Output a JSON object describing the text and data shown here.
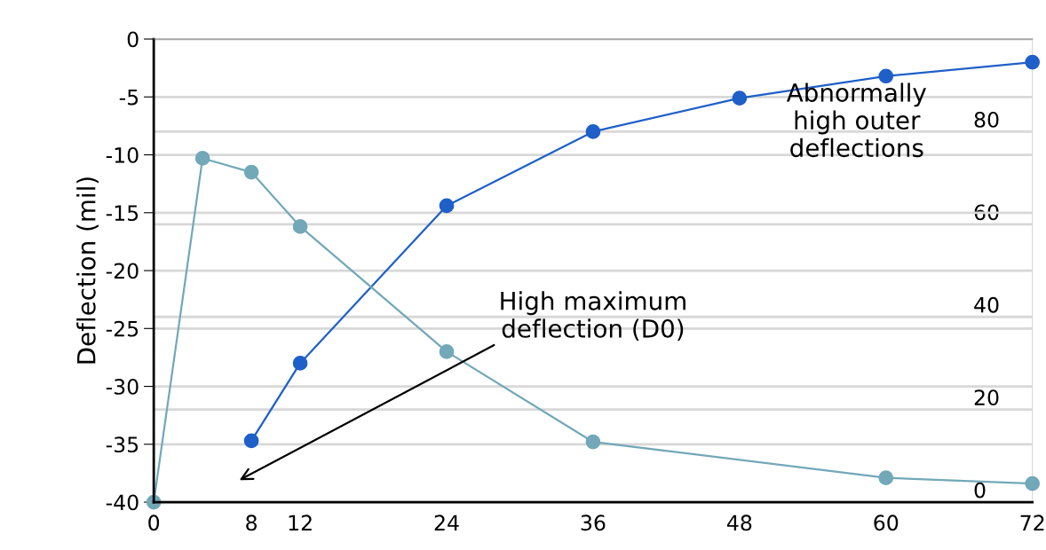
{
  "chart_data": {
    "type": "line",
    "ylabel": "Deflection (mil)",
    "x": [
      8,
      12,
      24,
      36,
      48,
      60,
      72
    ],
    "series": [
      {
        "color": "#1f5fc8",
        "values": [
          -34.7,
          -28.0,
          -14.4,
          -8.0,
          -5.1,
          -3.2,
          -2.0
        ]
      },
      {
        "color": "#72a8b8",
        "x": [
          0,
          4,
          8,
          12,
          24,
          36,
          60,
          72
        ],
        "values": [
          -40,
          -10.3,
          -11.5,
          -16.2,
          -27.0,
          -34.8,
          -37.9,
          -38.4
        ]
      }
    ],
    "xlim": [
      0,
      72
    ],
    "xticks": [
      0,
      8,
      12,
      24,
      36,
      48,
      60,
      72
    ],
    "ylim": [
      -40,
      0
    ],
    "yticks": [
      -40,
      -35,
      -30,
      -25,
      -20,
      -15,
      -10,
      -5,
      0
    ],
    "y2lim": [
      0,
      100
    ],
    "y2ticks": [
      0,
      20,
      40,
      60,
      80
    ],
    "grid": "y",
    "marker": "circle",
    "line_style": "solid",
    "annotations": [
      "High maximum\ndeflection (D0)",
      "Abnormally\nhigh outer\ndeflections"
    ]
  }
}
